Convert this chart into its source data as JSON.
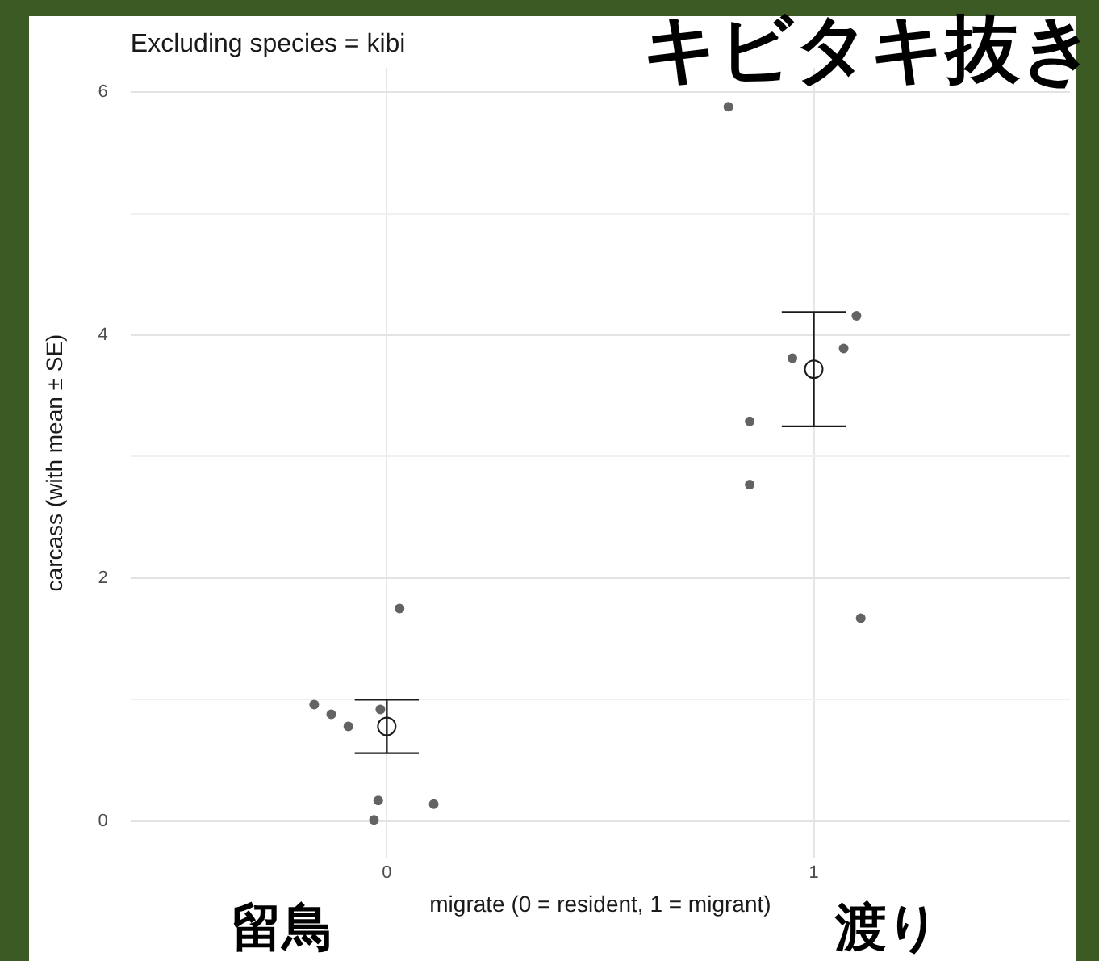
{
  "chart_data": {
    "type": "scatter",
    "title": "Excluding species = kibi",
    "xlabel": "migrate (0 = resident, 1 = migrant)",
    "ylabel": "carcass (with mean ± SE)",
    "annotations": [
      "キビタキ抜き",
      "留鳥",
      "渡り"
    ],
    "xlim": [
      -0.6,
      1.6
    ],
    "xticks": [
      0,
      1
    ],
    "ylim": [
      -0.3,
      6.2
    ],
    "yticks": [
      0,
      {
        "value": 1,
        "label": null
      },
      2,
      {
        "value": 3,
        "label": null
      },
      4,
      {
        "value": 5,
        "label": null
      },
      6
    ],
    "grid": true,
    "legend": false,
    "series": [
      {
        "color": "#636363",
        "marker": "circle",
        "x": [
          -0.17,
          -0.13,
          -0.09,
          -0.015,
          0.03,
          -0.02,
          -0.03,
          0.11,
          0.8,
          0.95,
          1.07,
          1.1,
          0.85,
          0.85,
          1.11
        ],
        "values": [
          0.96,
          0.88,
          0.78,
          0.92,
          1.75,
          0.17,
          0.01,
          0.14,
          5.88,
          3.81,
          3.89,
          4.16,
          3.29,
          2.77,
          1.67
        ]
      },
      {
        "color": "#1a1a1a",
        "marker": "circle",
        "x": [
          0,
          1
        ],
        "values": [
          0.78,
          3.72
        ],
        "errors": [
          0.22,
          0.47
        ]
      }
    ]
  }
}
